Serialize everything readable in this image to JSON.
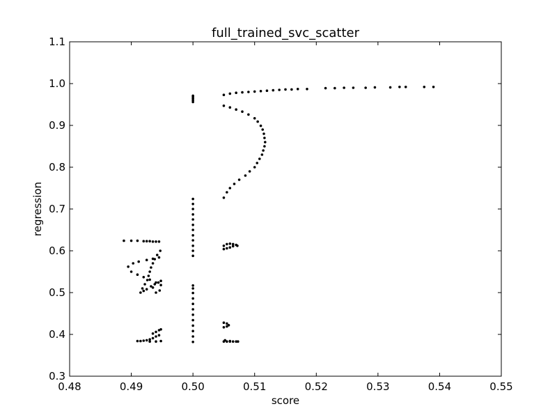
{
  "chart_data": {
    "type": "scatter",
    "title": "full_trained_svc_scatter",
    "xlabel": "score",
    "ylabel": "regression",
    "xlim": [
      0.48,
      0.55
    ],
    "ylim": [
      0.3,
      1.1
    ],
    "x_ticks": [
      "0.48",
      "0.49",
      "0.50",
      "0.51",
      "0.52",
      "0.53",
      "0.54",
      "0.55"
    ],
    "y_ticks": [
      "0.3",
      "0.4",
      "0.5",
      "0.6",
      "0.7",
      "0.8",
      "0.9",
      "1.0",
      "1.1"
    ],
    "x_tick_values": [
      0.48,
      0.49,
      0.5,
      0.51,
      0.52,
      0.53,
      0.54,
      0.55
    ],
    "y_tick_values": [
      0.3,
      0.4,
      0.5,
      0.6,
      0.7,
      0.8,
      0.9,
      1.0,
      1.1
    ],
    "grid": false,
    "marker_color": "#000000",
    "series": [
      {
        "points": [
          [
            0.505,
            0.973
          ],
          [
            0.506,
            0.976
          ],
          [
            0.507,
            0.978
          ],
          [
            0.508,
            0.979
          ],
          [
            0.509,
            0.98
          ],
          [
            0.51,
            0.981
          ],
          [
            0.511,
            0.982
          ],
          [
            0.512,
            0.983
          ],
          [
            0.513,
            0.984
          ],
          [
            0.514,
            0.985
          ],
          [
            0.515,
            0.986
          ],
          [
            0.516,
            0.986
          ],
          [
            0.517,
            0.987
          ],
          [
            0.5185,
            0.987
          ],
          [
            0.5215,
            0.989
          ],
          [
            0.523,
            0.989
          ],
          [
            0.5245,
            0.99
          ],
          [
            0.526,
            0.99
          ],
          [
            0.528,
            0.99
          ],
          [
            0.5295,
            0.991
          ],
          [
            0.532,
            0.991
          ],
          [
            0.5335,
            0.992
          ],
          [
            0.5345,
            0.992
          ],
          [
            0.5375,
            0.992
          ],
          [
            0.539,
            0.992
          ],
          [
            0.505,
            0.947
          ],
          [
            0.506,
            0.943
          ],
          [
            0.507,
            0.938
          ],
          [
            0.508,
            0.933
          ],
          [
            0.509,
            0.926
          ],
          [
            0.51,
            0.917
          ],
          [
            0.5105,
            0.909
          ],
          [
            0.511,
            0.899
          ],
          [
            0.5113,
            0.89
          ],
          [
            0.5115,
            0.88
          ],
          [
            0.5116,
            0.87
          ],
          [
            0.5117,
            0.86
          ],
          [
            0.5116,
            0.85
          ],
          [
            0.5114,
            0.84
          ],
          [
            0.5112,
            0.83
          ],
          [
            0.5108,
            0.82
          ],
          [
            0.5104,
            0.81
          ],
          [
            0.51,
            0.8
          ],
          [
            0.5092,
            0.79
          ],
          [
            0.5085,
            0.78
          ],
          [
            0.5075,
            0.77
          ],
          [
            0.5067,
            0.76
          ],
          [
            0.506,
            0.75
          ],
          [
            0.5055,
            0.74
          ],
          [
            0.505,
            0.727
          ],
          [
            0.5,
            0.956
          ],
          [
            0.5,
            0.96
          ],
          [
            0.5,
            0.964
          ],
          [
            0.5,
            0.968
          ],
          [
            0.5,
            0.971
          ],
          [
            0.5,
            0.588
          ],
          [
            0.5,
            0.6
          ],
          [
            0.5,
            0.612
          ],
          [
            0.5,
            0.625
          ],
          [
            0.5,
            0.637
          ],
          [
            0.5,
            0.65
          ],
          [
            0.5,
            0.662
          ],
          [
            0.5,
            0.675
          ],
          [
            0.5,
            0.687
          ],
          [
            0.5,
            0.7
          ],
          [
            0.5,
            0.712
          ],
          [
            0.5,
            0.724
          ],
          [
            0.5,
            0.382
          ],
          [
            0.5,
            0.395
          ],
          [
            0.5,
            0.408
          ],
          [
            0.5,
            0.421
          ],
          [
            0.5,
            0.434
          ],
          [
            0.5,
            0.447
          ],
          [
            0.5,
            0.46
          ],
          [
            0.5,
            0.473
          ],
          [
            0.5,
            0.486
          ],
          [
            0.5,
            0.499
          ],
          [
            0.5,
            0.51
          ],
          [
            0.5,
            0.517
          ],
          [
            0.4888,
            0.624
          ],
          [
            0.49,
            0.624
          ],
          [
            0.491,
            0.624
          ],
          [
            0.492,
            0.623
          ],
          [
            0.4925,
            0.623
          ],
          [
            0.493,
            0.623
          ],
          [
            0.4935,
            0.622
          ],
          [
            0.494,
            0.622
          ],
          [
            0.4945,
            0.622
          ],
          [
            0.4895,
            0.562
          ],
          [
            0.49,
            0.55
          ],
          [
            0.4903,
            0.57
          ],
          [
            0.491,
            0.543
          ],
          [
            0.4912,
            0.574
          ],
          [
            0.492,
            0.537
          ],
          [
            0.4925,
            0.578
          ],
          [
            0.493,
            0.531
          ],
          [
            0.4935,
            0.581
          ],
          [
            0.494,
            0.524
          ],
          [
            0.4945,
            0.584
          ],
          [
            0.4948,
            0.518
          ],
          [
            0.4915,
            0.5
          ],
          [
            0.4918,
            0.51
          ],
          [
            0.4922,
            0.52
          ],
          [
            0.4926,
            0.53
          ],
          [
            0.4928,
            0.54
          ],
          [
            0.493,
            0.55
          ],
          [
            0.4932,
            0.56
          ],
          [
            0.4935,
            0.57
          ],
          [
            0.4938,
            0.58
          ],
          [
            0.4942,
            0.59
          ],
          [
            0.4947,
            0.6
          ],
          [
            0.4925,
            0.508
          ],
          [
            0.4932,
            0.515
          ],
          [
            0.4938,
            0.52
          ],
          [
            0.4944,
            0.524
          ],
          [
            0.4948,
            0.528
          ],
          [
            0.4935,
            0.512
          ],
          [
            0.492,
            0.504
          ],
          [
            0.494,
            0.5
          ],
          [
            0.4946,
            0.505
          ],
          [
            0.491,
            0.384
          ],
          [
            0.4915,
            0.384
          ],
          [
            0.492,
            0.385
          ],
          [
            0.4925,
            0.386
          ],
          [
            0.493,
            0.388
          ],
          [
            0.4935,
            0.391
          ],
          [
            0.494,
            0.395
          ],
          [
            0.4945,
            0.398
          ],
          [
            0.493,
            0.383
          ],
          [
            0.494,
            0.383
          ],
          [
            0.4948,
            0.384
          ],
          [
            0.4935,
            0.402
          ],
          [
            0.494,
            0.406
          ],
          [
            0.4945,
            0.41
          ],
          [
            0.4948,
            0.412
          ],
          [
            0.505,
            0.612
          ],
          [
            0.5055,
            0.616
          ],
          [
            0.506,
            0.617
          ],
          [
            0.5065,
            0.616
          ],
          [
            0.507,
            0.614
          ],
          [
            0.5072,
            0.612
          ],
          [
            0.506,
            0.608
          ],
          [
            0.5055,
            0.606
          ],
          [
            0.505,
            0.604
          ],
          [
            0.5065,
            0.611
          ],
          [
            0.505,
            0.428
          ],
          [
            0.5055,
            0.426
          ],
          [
            0.5058,
            0.422
          ],
          [
            0.5055,
            0.419
          ],
          [
            0.505,
            0.417
          ],
          [
            0.505,
            0.383
          ],
          [
            0.5055,
            0.383
          ],
          [
            0.506,
            0.383
          ],
          [
            0.5065,
            0.383
          ],
          [
            0.507,
            0.383
          ],
          [
            0.5073,
            0.383
          ],
          [
            0.5052,
            0.386
          ],
          [
            0.506,
            0.384
          ]
        ]
      }
    ]
  }
}
